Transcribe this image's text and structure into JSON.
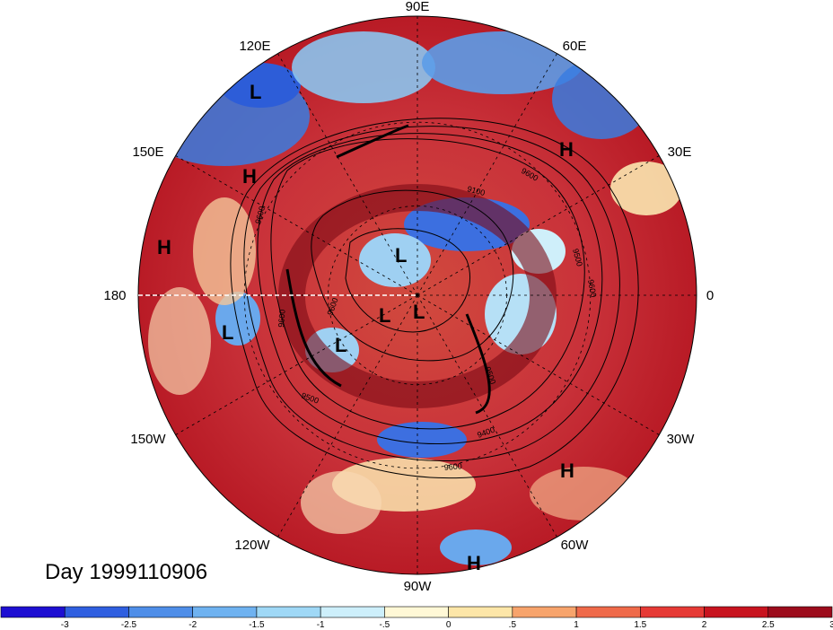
{
  "map": {
    "projection": "north-polar-stereographic",
    "longitude_labels": [
      {
        "text": "90E",
        "lon": 90
      },
      {
        "text": "60E",
        "lon": 60
      },
      {
        "text": "30E",
        "lon": 30
      },
      {
        "text": "0",
        "lon": 0
      },
      {
        "text": "30W",
        "lon": -30
      },
      {
        "text": "60W",
        "lon": -60
      },
      {
        "text": "90W",
        "lon": -90
      },
      {
        "text": "120W",
        "lon": -120
      },
      {
        "text": "150W",
        "lon": -150
      },
      {
        "text": "180",
        "lon": 180
      },
      {
        "text": "150E",
        "lon": 150
      },
      {
        "text": "120E",
        "lon": 120
      }
    ],
    "pressure_centers": [
      {
        "type": "L",
        "label": "L"
      },
      {
        "type": "H",
        "label": "H"
      },
      {
        "type": "H",
        "label": "H"
      },
      {
        "type": "H",
        "label": "H"
      },
      {
        "type": "L",
        "label": "L"
      },
      {
        "type": "L",
        "label": "L"
      },
      {
        "type": "L",
        "label": "L"
      },
      {
        "type": "L",
        "label": "L"
      },
      {
        "type": "L",
        "label": "L"
      },
      {
        "type": "H",
        "label": "H"
      },
      {
        "type": "H",
        "label": "H"
      }
    ],
    "contour_labels": [
      "9600",
      "9600",
      "9600",
      "9500",
      "9500",
      "9600",
      "9400",
      "9600",
      "9500",
      "9100",
      "9600"
    ]
  },
  "timestamp": "Day 1999110906",
  "colorbar": {
    "colors": [
      "#1e0fd2",
      "#2f5fe0",
      "#4f8ee8",
      "#6fb2f0",
      "#9fd8f6",
      "#cdeffb",
      "#fff8d6",
      "#fde6a8",
      "#f7a46c",
      "#ef6a4a",
      "#e63a35",
      "#c8141f",
      "#9c0c1c"
    ],
    "tick_labels": [
      "-3",
      "-2.5",
      "-2",
      "-1.5",
      "-1",
      "-.5",
      "0",
      ".5",
      "1",
      "1.5",
      "2",
      "2.5",
      "3"
    ]
  }
}
